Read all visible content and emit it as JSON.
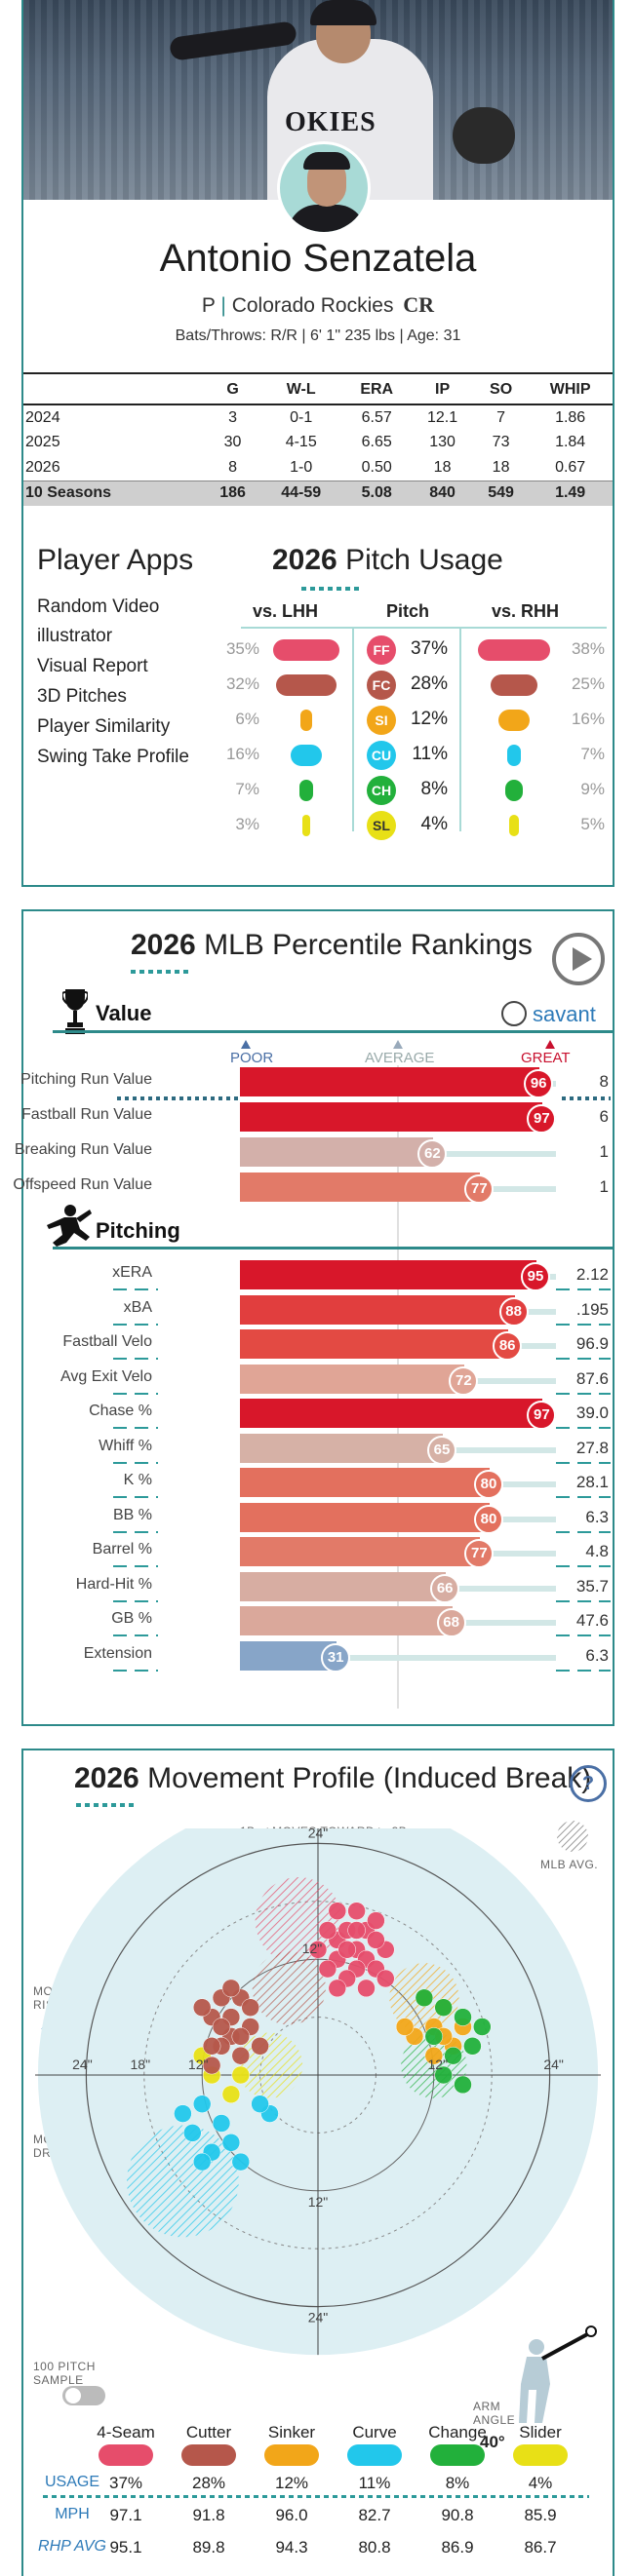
{
  "player": {
    "name": "Antonio Senzatela",
    "position": "P",
    "team": "Colorado Rockies",
    "team_logo": "CR",
    "bio": "Bats/Throws: R/R | 6' 1\" 235 lbs | Age: 31",
    "jersey_text": "OKIES"
  },
  "stats": {
    "headers": [
      "",
      "G",
      "W-L",
      "ERA",
      "IP",
      "SO",
      "WHIP"
    ],
    "rows": [
      [
        "2024",
        "3",
        "0-1",
        "6.57",
        "12.1",
        "7",
        "1.86"
      ],
      [
        "2025",
        "30",
        "4-15",
        "6.65",
        "130",
        "73",
        "1.84"
      ],
      [
        "2026",
        "8",
        "1-0",
        "0.50",
        "18",
        "18",
        "0.67"
      ]
    ],
    "total": [
      "10 Seasons",
      "186",
      "44-59",
      "5.08",
      "840",
      "549",
      "1.49"
    ]
  },
  "apps": {
    "title": "Player Apps",
    "items": [
      "Random Video",
      "illustrator",
      "Visual Report",
      "3D Pitches",
      "Player Similarity",
      "Swing Take Profile"
    ]
  },
  "pitch_usage": {
    "year": "2026",
    "title": "Pitch Usage",
    "col_lhh": "vs. LHH",
    "col_pitch": "Pitch",
    "col_rhh": "vs. RHH",
    "rows": [
      {
        "code": "FF",
        "lhh": "35%",
        "pct": "37%",
        "rhh": "38%",
        "color": "#e64d6b",
        "lhh_v": 35,
        "rhh_v": 38
      },
      {
        "code": "FC",
        "lhh": "32%",
        "pct": "28%",
        "rhh": "25%",
        "color": "#b5574b",
        "lhh_v": 32,
        "rhh_v": 25
      },
      {
        "code": "SI",
        "lhh": "6%",
        "pct": "12%",
        "rhh": "16%",
        "color": "#f2a619",
        "lhh_v": 6,
        "rhh_v": 16
      },
      {
        "code": "CU",
        "lhh": "16%",
        "pct": "11%",
        "rhh": "7%",
        "color": "#22c7eb",
        "lhh_v": 16,
        "rhh_v": 7
      },
      {
        "code": "CH",
        "lhh": "7%",
        "pct": "8%",
        "rhh": "9%",
        "color": "#22b03b",
        "lhh_v": 7,
        "rhh_v": 9
      },
      {
        "code": "SL",
        "lhh": "3%",
        "pct": "4%",
        "rhh": "5%",
        "color": "#e8e016",
        "lhh_v": 3,
        "rhh_v": 5
      }
    ]
  },
  "percentile": {
    "year": "2026",
    "title": "MLB Percentile Rankings",
    "savant": "savant",
    "scale": {
      "poor": "POOR",
      "average": "AVERAGE",
      "great": "GREAT"
    },
    "value_title": "Value",
    "value_rows": [
      {
        "label": "Pitching Run Value",
        "pct": 96,
        "value": "8",
        "color": "#d8172a"
      },
      {
        "label": "Fastball Run Value",
        "pct": 97,
        "value": "6",
        "color": "#d8172a"
      },
      {
        "label": "Breaking Run Value",
        "pct": 62,
        "value": "1",
        "color": "#d3b0aa"
      },
      {
        "label": "Offspeed Run Value",
        "pct": 77,
        "value": "1",
        "color": "#e27a68"
      }
    ],
    "pitching_title": "Pitching",
    "pitching_rows": [
      {
        "label": "xERA",
        "pct": 95,
        "value": "2.12",
        "color": "#d8172a"
      },
      {
        "label": "xBA",
        "pct": 88,
        "value": ".195",
        "color": "#e13e3e"
      },
      {
        "label": "Fastball Velo",
        "pct": 86,
        "value": "96.9",
        "color": "#e34a43"
      },
      {
        "label": "Avg Exit Velo",
        "pct": 72,
        "value": "87.6",
        "color": "#e0a596"
      },
      {
        "label": "Chase %",
        "pct": 97,
        "value": "39.0",
        "color": "#d8172a"
      },
      {
        "label": "Whiff %",
        "pct": 65,
        "value": "27.8",
        "color": "#d6b1a6"
      },
      {
        "label": "K %",
        "pct": 80,
        "value": "28.1",
        "color": "#e3705e"
      },
      {
        "label": "BB %",
        "pct": 80,
        "value": "6.3",
        "color": "#e3705e"
      },
      {
        "label": "Barrel %",
        "pct": 77,
        "value": "4.8",
        "color": "#e27a68"
      },
      {
        "label": "Hard-Hit %",
        "pct": 66,
        "value": "35.7",
        "color": "#d7ada2"
      },
      {
        "label": "GB %",
        "pct": 68,
        "value": "47.6",
        "color": "#daa89b"
      },
      {
        "label": "Extension",
        "pct": 31,
        "value": "6.3",
        "color": "#87a5c8"
      }
    ]
  },
  "movement": {
    "year": "2026",
    "title": "Movement Profile (Induced Break)",
    "help": "?",
    "moves_toward": "MOVES TOWARD",
    "dir_left": "1B",
    "dir_right": "3B",
    "mlb_avg": "MLB AVG.",
    "more_rise": "MORE RISE",
    "more_drop": "MORE DROP",
    "sample": "100 PITCH SAMPLE",
    "arm_angle_label": "ARM ANGLE",
    "arm_angle": "40°",
    "ring_labels": {
      "r24_top": "24\"",
      "r12_top": "12\"",
      "r12_bottom": "12\"",
      "r24_bottom": "24\"",
      "left24": "24\"",
      "left18": "18\"",
      "left12": "12\"",
      "right12": "12\"",
      "right24": "24\""
    },
    "pitches": [
      {
        "name": "4-Seam",
        "usage": "37%",
        "mph": "97.1",
        "rhp": "95.1",
        "color": "#e64d6b"
      },
      {
        "name": "Cutter",
        "usage": "28%",
        "mph": "91.8",
        "rhp": "89.8",
        "color": "#b5574b"
      },
      {
        "name": "Sinker",
        "usage": "12%",
        "mph": "96.0",
        "rhp": "94.3",
        "color": "#f2a619"
      },
      {
        "name": "Curve",
        "usage": "11%",
        "mph": "82.7",
        "rhp": "80.8",
        "color": "#22c7eb"
      },
      {
        "name": "Change",
        "usage": "8%",
        "mph": "90.8",
        "rhp": "86.9",
        "color": "#22b03b"
      },
      {
        "name": "Slider",
        "usage": "4%",
        "mph": "85.9",
        "rhp": "86.7",
        "color": "#e8e016"
      }
    ],
    "row_labels": {
      "usage": "USAGE",
      "mph": "MPH",
      "rhp": "RHP AVG"
    }
  }
}
